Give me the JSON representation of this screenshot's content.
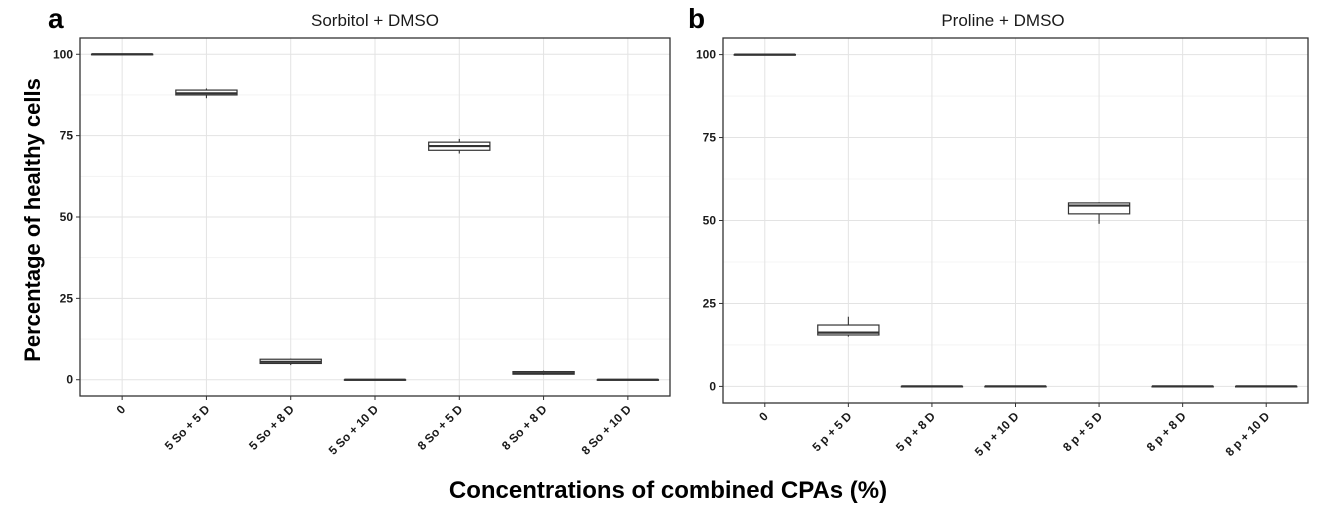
{
  "figure": {
    "ylabel": "Percentage of healthy cells",
    "xlabel": "Concentrations of combined CPAs (%)"
  },
  "chart_data": [
    {
      "type": "box",
      "panel": "a",
      "title": "Sorbitol + DMSO",
      "ylim": [
        -5,
        105
      ],
      "yticks": [
        "0",
        "25",
        "50",
        "75",
        "100"
      ],
      "grid": true,
      "categories": [
        "0",
        "5 So + 5 D",
        "5 So + 8 D",
        "5 So + 10 D",
        "8 So + 5 D",
        "8 So + 8 D",
        "8 So + 10 D"
      ],
      "boxes": [
        {
          "min": 100,
          "q1": 100,
          "median": 100,
          "q3": 100,
          "max": 100
        },
        {
          "min": 86.5,
          "q1": 87.5,
          "median": 88,
          "q3": 89,
          "max": 89.5
        },
        {
          "min": 4.5,
          "q1": 5,
          "median": 5.5,
          "q3": 6.3,
          "max": 6.5
        },
        {
          "min": 0,
          "q1": 0,
          "median": 0,
          "q3": 0,
          "max": 0
        },
        {
          "min": 69.5,
          "q1": 70.5,
          "median": 71.8,
          "q3": 73,
          "max": 74
        },
        {
          "min": 1.5,
          "q1": 1.7,
          "median": 2,
          "q3": 2.5,
          "max": 2.8
        },
        {
          "min": 0,
          "q1": 0,
          "median": 0,
          "q3": 0,
          "max": 0
        }
      ]
    },
    {
      "type": "box",
      "panel": "b",
      "title": "Proline + DMSO",
      "ylim": [
        -5,
        105
      ],
      "yticks": [
        "0",
        "25",
        "50",
        "75",
        "100"
      ],
      "grid": true,
      "categories": [
        "0",
        "5 p + 5 D",
        "5 p + 8 D",
        "5 p + 10 D",
        "8 p + 5 D",
        "8 p + 8 D",
        "8 p + 10 D"
      ],
      "boxes": [
        {
          "min": 100,
          "q1": 100,
          "median": 100,
          "q3": 100,
          "max": 100
        },
        {
          "min": 15,
          "q1": 15.5,
          "median": 16.2,
          "q3": 18.5,
          "max": 21
        },
        {
          "min": 0,
          "q1": 0,
          "median": 0,
          "q3": 0,
          "max": 0
        },
        {
          "min": 0,
          "q1": 0,
          "median": 0,
          "q3": 0,
          "max": 0
        },
        {
          "min": 49,
          "q1": 52,
          "median": 54.5,
          "q3": 55.3,
          "max": 55.5
        },
        {
          "min": 0,
          "q1": 0,
          "median": 0,
          "q3": 0,
          "max": 0
        },
        {
          "min": 0,
          "q1": 0,
          "median": 0,
          "q3": 0,
          "max": 0
        }
      ]
    }
  ]
}
